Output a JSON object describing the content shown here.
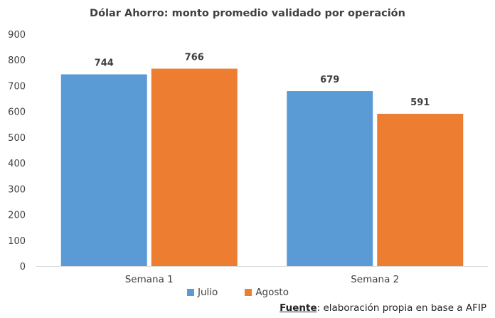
{
  "chart_data": {
    "type": "bar",
    "title": "Dólar Ahorro: monto promedio validado por operación",
    "categories": [
      "Semana 1",
      "Semana 2"
    ],
    "series": [
      {
        "name": "Julio",
        "color": "#5B9BD5",
        "values": [
          744,
          679
        ]
      },
      {
        "name": "Agosto",
        "color": "#ED7D31",
        "values": [
          766,
          591
        ]
      }
    ],
    "ylim": [
      0,
      900
    ],
    "yticks": [
      "0",
      "100",
      "200",
      "300",
      "400",
      "500",
      "600",
      "700",
      "800",
      "900"
    ],
    "grid": false,
    "legend_position": "bottom"
  },
  "source": {
    "label": "Fuente",
    "text": ": elaboración propia en base a AFIP"
  }
}
